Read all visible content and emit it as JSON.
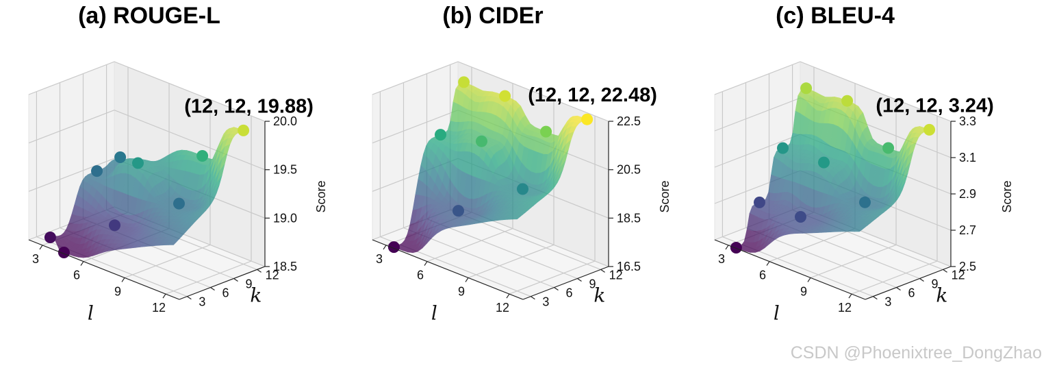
{
  "watermark": "CSDN @Phoenixtree_DongZhao",
  "chart_data": [
    {
      "type": "surface3d",
      "title": "(a) ROUGE-L",
      "xlabel": "l",
      "ylabel": "k",
      "zlabel": "Score",
      "x_ticks": [
        "3",
        "6",
        "9",
        "12"
      ],
      "y_ticks": [
        "3",
        "6",
        "9",
        "12"
      ],
      "z_ticks": [
        "18.5",
        "19.0",
        "19.5",
        "20.0"
      ],
      "xlim": [
        2,
        13
      ],
      "ylim": [
        2,
        13
      ],
      "zlim": [
        18.5,
        20.0
      ],
      "points": [
        {
          "l": 3,
          "k": 3,
          "score": 18.55
        },
        {
          "l": 4,
          "k": 3,
          "score": 18.45
        },
        {
          "l": 6,
          "k": 6,
          "score": 18.75
        },
        {
          "l": 3,
          "k": 9,
          "score": 19.05
        },
        {
          "l": 3,
          "k": 12,
          "score": 19.1
        },
        {
          "l": 6,
          "k": 9,
          "score": 19.3
        },
        {
          "l": 9,
          "k": 12,
          "score": 19.45
        },
        {
          "l": 9,
          "k": 9,
          "score": 19.05
        },
        {
          "l": 12,
          "k": 12,
          "score": 19.88
        }
      ],
      "annotation": "(12, 12, 19.88)"
    },
    {
      "type": "surface3d",
      "title": "(b) CIDEr",
      "xlabel": "l",
      "ylabel": "k",
      "zlabel": "Score",
      "x_ticks": [
        "3",
        "6",
        "9",
        "12"
      ],
      "y_ticks": [
        "3",
        "6",
        "9",
        "12"
      ],
      "z_ticks": [
        "16.5",
        "18.5",
        "20.5",
        "22.5"
      ],
      "xlim": [
        2,
        13
      ],
      "ylim": [
        2,
        13
      ],
      "zlim": [
        16.5,
        22.5
      ],
      "points": [
        {
          "l": 3,
          "k": 3,
          "score": 16.3
        },
        {
          "l": 6,
          "k": 6,
          "score": 18.1
        },
        {
          "l": 3,
          "k": 9,
          "score": 20.2
        },
        {
          "l": 3,
          "k": 12,
          "score": 22.0
        },
        {
          "l": 6,
          "k": 9,
          "score": 20.6
        },
        {
          "l": 9,
          "k": 12,
          "score": 21.3
        },
        {
          "l": 9,
          "k": 9,
          "score": 19.3
        },
        {
          "l": 6,
          "k": 12,
          "score": 22.1
        },
        {
          "l": 12,
          "k": 12,
          "score": 22.48
        }
      ],
      "annotation": "(12, 12, 22.48)"
    },
    {
      "type": "surface3d",
      "title": "(c) BLEU-4",
      "xlabel": "l",
      "ylabel": "k",
      "zlabel": "Score",
      "x_ticks": [
        "3",
        "6",
        "9",
        "12"
      ],
      "y_ticks": [
        "3",
        "6",
        "9",
        "12"
      ],
      "z_ticks": [
        "2.5",
        "2.7",
        "2.9",
        "3.1",
        "3.3"
      ],
      "xlim": [
        2,
        13
      ],
      "ylim": [
        2,
        13
      ],
      "zlim": [
        2.5,
        3.3
      ],
      "points": [
        {
          "l": 3,
          "k": 3,
          "score": 2.47
        },
        {
          "l": 6,
          "k": 6,
          "score": 2.68
        },
        {
          "l": 3,
          "k": 6,
          "score": 2.67
        },
        {
          "l": 3,
          "k": 9,
          "score": 2.92
        },
        {
          "l": 3,
          "k": 12,
          "score": 3.2
        },
        {
          "l": 6,
          "k": 9,
          "score": 2.93
        },
        {
          "l": 9,
          "k": 12,
          "score": 3.05
        },
        {
          "l": 9,
          "k": 9,
          "score": 2.8
        },
        {
          "l": 6,
          "k": 12,
          "score": 3.22
        },
        {
          "l": 12,
          "k": 12,
          "score": 3.24
        }
      ],
      "annotation": "(12, 12, 3.24)"
    }
  ]
}
